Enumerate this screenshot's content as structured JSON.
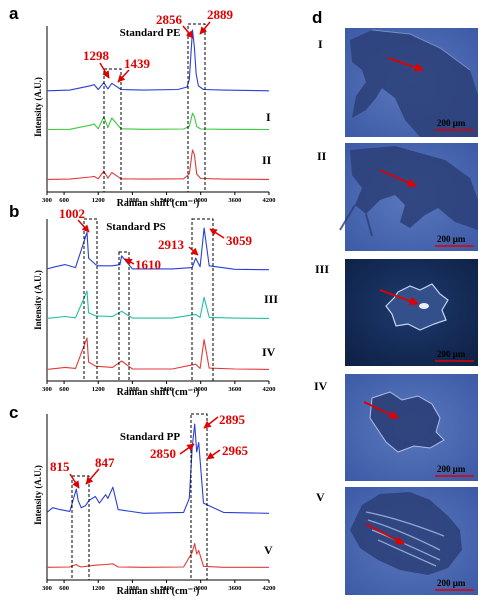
{
  "panels": [
    {
      "label": "a",
      "standard": "Standard PE",
      "ylabel": "Intensity (A.U.)",
      "xlabel": "Raman shift (cm⁻¹)",
      "xticks": [
        300,
        600,
        1200,
        1800,
        2400,
        3000,
        3600,
        4200
      ],
      "sample_labels": [
        "I",
        "II"
      ],
      "peak_labels": [
        "1298",
        "1439",
        "2856",
        "2889"
      ]
    },
    {
      "label": "b",
      "standard": "Standard PS",
      "ylabel": "Intensity (A.U.)",
      "xlabel": "Raman shift (cm⁻¹)",
      "xticks": [
        300,
        600,
        1200,
        1800,
        2400,
        3000,
        3600,
        4200
      ],
      "sample_labels": [
        "III",
        "IV"
      ],
      "peak_labels": [
        "1002",
        "1610",
        "2913",
        "3059"
      ]
    },
    {
      "label": "c",
      "standard": "Standard PP",
      "ylabel": "Intensity (A.U.)",
      "xlabel": "Raman shift (cm⁻¹)",
      "xticks": [
        300,
        600,
        1200,
        1800,
        2400,
        3000,
        3600,
        4200
      ],
      "sample_labels": [
        "V"
      ],
      "peak_labels": [
        "815",
        "847",
        "2850",
        "2895",
        "2965"
      ]
    }
  ],
  "micrographs": {
    "label": "d",
    "items": [
      {
        "label": "I",
        "scale": "200 μm"
      },
      {
        "label": "II",
        "scale": "200 μm"
      },
      {
        "label": "III",
        "scale": "200 μm"
      },
      {
        "label": "IV",
        "scale": "200 μm"
      },
      {
        "label": "V",
        "scale": "200 μm"
      }
    ]
  },
  "chart_data": [
    {
      "type": "line",
      "title": "Standard PE",
      "xlabel": "Raman shift (cm⁻¹)",
      "ylabel": "Intensity (A.U.)",
      "xlim": [
        300,
        4200
      ],
      "series": [
        {
          "name": "Standard PE",
          "color": "#2a3fd6",
          "x": [
            300,
            700,
            1060,
            1130,
            1200,
            1298,
            1370,
            1439,
            1600,
            2000,
            2600,
            2760,
            2800,
            2856,
            2889,
            2920,
            2960,
            3050,
            3400,
            4200
          ],
          "y": [
            0.02,
            0.03,
            0.1,
            0.12,
            0.04,
            0.15,
            0.05,
            0.14,
            0.04,
            0.03,
            0.04,
            0.08,
            0.2,
            1.0,
            0.72,
            0.3,
            0.1,
            0.04,
            0.03,
            0.02
          ]
        },
        {
          "name": "I",
          "color": "#3cc83c",
          "x": [
            300,
            700,
            1060,
            1130,
            1200,
            1298,
            1370,
            1439,
            1600,
            2000,
            2700,
            2800,
            2856,
            2889,
            2930,
            3000,
            3400,
            4200
          ],
          "y": [
            0.02,
            0.03,
            0.2,
            0.25,
            0.05,
            0.55,
            0.1,
            0.5,
            0.05,
            0.03,
            0.04,
            0.15,
            0.7,
            0.55,
            0.15,
            0.04,
            0.03,
            0.02
          ]
        },
        {
          "name": "II",
          "color": "#e23a3a",
          "x": [
            300,
            700,
            1060,
            1130,
            1200,
            1298,
            1370,
            1439,
            1600,
            2000,
            2700,
            2800,
            2856,
            2889,
            2930,
            3000,
            3400,
            4200
          ],
          "y": [
            0.02,
            0.03,
            0.1,
            0.12,
            0.04,
            0.3,
            0.06,
            0.25,
            0.04,
            0.03,
            0.04,
            0.2,
            1.0,
            0.85,
            0.2,
            0.05,
            0.03,
            0.02
          ]
        }
      ]
    },
    {
      "type": "line",
      "title": "Standard PS",
      "xlabel": "Raman shift (cm⁻¹)",
      "ylabel": "Intensity (A.U.)",
      "xlim": [
        300,
        4200
      ],
      "series": [
        {
          "name": "Standard PS",
          "color": "#2a3fd6",
          "x": [
            300,
            450,
            620,
            800,
            1002,
            1031,
            1155,
            1200,
            1450,
            1583,
            1610,
            1800,
            2500,
            2850,
            2913,
            2990,
            3059,
            3150,
            3600,
            4200
          ],
          "y": [
            0.05,
            0.1,
            0.15,
            0.08,
            0.9,
            0.3,
            0.15,
            0.12,
            0.12,
            0.15,
            0.35,
            0.05,
            0.05,
            0.08,
            0.3,
            0.1,
            1.0,
            0.12,
            0.04,
            0.03
          ]
        },
        {
          "name": "III",
          "color": "#22c0a0",
          "x": [
            300,
            620,
            800,
            1002,
            1031,
            1155,
            1450,
            1610,
            1800,
            2500,
            2913,
            2990,
            3059,
            3150,
            3600,
            4200
          ],
          "y": [
            0.02,
            0.08,
            0.04,
            0.9,
            0.2,
            0.1,
            0.08,
            0.25,
            0.03,
            0.03,
            0.15,
            0.05,
            0.7,
            0.05,
            0.03,
            0.02
          ]
        },
        {
          "name": "IV",
          "color": "#e23a3a",
          "x": [
            300,
            620,
            800,
            1002,
            1031,
            1155,
            1450,
            1610,
            1800,
            2500,
            2913,
            2990,
            3059,
            3150,
            3600,
            4200
          ],
          "y": [
            0.02,
            0.08,
            0.05,
            1.0,
            0.25,
            0.12,
            0.08,
            0.28,
            0.03,
            0.03,
            0.18,
            0.05,
            0.95,
            0.06,
            0.03,
            0.02
          ]
        }
      ]
    },
    {
      "type": "line",
      "title": "Standard PP",
      "xlabel": "Raman shift (cm⁻¹)",
      "ylabel": "Intensity (A.U.)",
      "xlim": [
        300,
        4200
      ],
      "series": [
        {
          "name": "Standard PP",
          "color": "#2a3fd6",
          "x": [
            300,
            400,
            530,
            700,
            815,
            847,
            900,
            975,
            1040,
            1150,
            1220,
            1330,
            1370,
            1458,
            1550,
            2000,
            2700,
            2800,
            2850,
            2895,
            2930,
            2965,
            3050,
            3400,
            4200
          ],
          "y": [
            0.05,
            0.1,
            0.08,
            0.06,
            0.3,
            0.18,
            0.1,
            0.12,
            0.18,
            0.22,
            0.15,
            0.24,
            0.2,
            0.32,
            0.08,
            0.04,
            0.05,
            0.2,
            0.75,
            1.0,
            0.7,
            0.8,
            0.15,
            0.05,
            0.04
          ]
        },
        {
          "name": "V",
          "color": "#e23a3a",
          "x": [
            300,
            700,
            815,
            847,
            900,
            1040,
            1150,
            1330,
            1458,
            1550,
            2000,
            2700,
            2850,
            2895,
            2930,
            2965,
            3050,
            3400,
            4200
          ],
          "y": [
            0.02,
            0.03,
            0.1,
            0.06,
            0.03,
            0.06,
            0.08,
            0.1,
            0.12,
            0.03,
            0.02,
            0.03,
            0.45,
            0.7,
            0.4,
            0.5,
            0.05,
            0.02,
            0.02
          ]
        }
      ]
    }
  ]
}
